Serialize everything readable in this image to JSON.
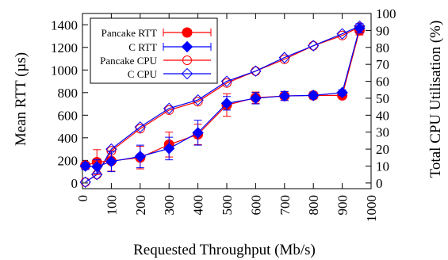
{
  "chart_data": {
    "type": "line",
    "xlabel": "Requested Throughput (Mb/s)",
    "ylabel": "Mean RTT (µs)",
    "y2label": "Total CPU Utilisation (%)",
    "xlim": [
      0,
      1000
    ],
    "ylim": [
      -50,
      1500
    ],
    "y2lim": [
      -3.33,
      100
    ],
    "x_ticks": [
      "0",
      "100",
      "200",
      "300",
      "400",
      "500",
      "600",
      "700",
      "800",
      "900",
      "1000"
    ],
    "y_ticks": [
      "0",
      "200",
      "400",
      "600",
      "800",
      "1000",
      "1200",
      "1400"
    ],
    "y2_ticks": [
      "0",
      "10",
      "20",
      "30",
      "40",
      "50",
      "60",
      "70",
      "80",
      "90",
      "100"
    ],
    "grid": false,
    "legend_position": "top-left",
    "x": [
      10,
      50,
      100,
      200,
      300,
      400,
      500,
      600,
      700,
      800,
      900,
      960
    ],
    "series": [
      {
        "name": "Pancake RTT",
        "axis": "left",
        "color": "#ff0000",
        "marker": "filled-circle",
        "values": [
          155,
          185,
          195,
          225,
          340,
          430,
          690,
          755,
          770,
          775,
          775,
          1350
        ],
        "errors": [
          30,
          110,
          90,
          100,
          110,
          90,
          100,
          50,
          40,
          30,
          25,
          40
        ]
      },
      {
        "name": "C RTT",
        "axis": "left",
        "color": "#0000ff",
        "marker": "filled-diamond",
        "values": [
          150,
          145,
          190,
          235,
          305,
          445,
          705,
          750,
          770,
          775,
          800,
          1370
        ],
        "errors": [
          30,
          60,
          90,
          100,
          100,
          110,
          60,
          50,
          40,
          30,
          25,
          40
        ]
      },
      {
        "name": "Pancake CPU",
        "axis": "right",
        "color": "#ff0000",
        "marker": "open-circle",
        "values": [
          0.5,
          5,
          19,
          32,
          43,
          48,
          59,
          66,
          73,
          81,
          87,
          92
        ]
      },
      {
        "name": "C CPU",
        "axis": "right",
        "color": "#0000ff",
        "marker": "open-diamond",
        "values": [
          0.5,
          5,
          20,
          33,
          44,
          49,
          60,
          66,
          74,
          81,
          88,
          92.5
        ]
      }
    ]
  }
}
